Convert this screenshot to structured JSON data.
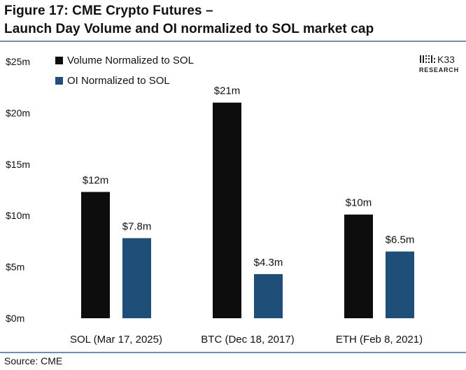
{
  "title_line1": "Figure 17: CME Crypto Futures –",
  "title_line2": "Launch Day Volume and OI normalized to SOL market cap",
  "source": "Source: CME",
  "logo": {
    "mark": "K33",
    "sub": "RESEARCH"
  },
  "colors": {
    "volume": "#0d0d0d",
    "oi": "#1f4e79",
    "rule": "#6f8fae"
  },
  "chart_data": {
    "type": "bar",
    "title": "Figure 17: CME Crypto Futures – Launch Day Volume and OI normalized to SOL market cap",
    "xlabel": "",
    "ylabel": "",
    "categories": [
      "SOL (Mar 17, 2025)",
      "BTC (Dec 18, 2017)",
      "ETH (Feb 8, 2021)"
    ],
    "series": [
      {
        "name": "Volume Normalized to SOL",
        "values": [
          12.3,
          21.0,
          10.1
        ],
        "labels": [
          "$12m",
          "$21m",
          "$10m"
        ]
      },
      {
        "name": "OI Normalized to SOL",
        "values": [
          7.8,
          4.3,
          6.5
        ],
        "labels": [
          "$7.8m",
          "$4.3m",
          "$6.5m"
        ]
      }
    ],
    "ylim": [
      0,
      25
    ],
    "yticks": [
      0,
      5,
      10,
      15,
      20,
      25
    ],
    "ytick_labels": [
      "$0m",
      "$5m",
      "$10m",
      "$15m",
      "$20m",
      "$25m"
    ],
    "grid": false,
    "legend": "top-left"
  }
}
